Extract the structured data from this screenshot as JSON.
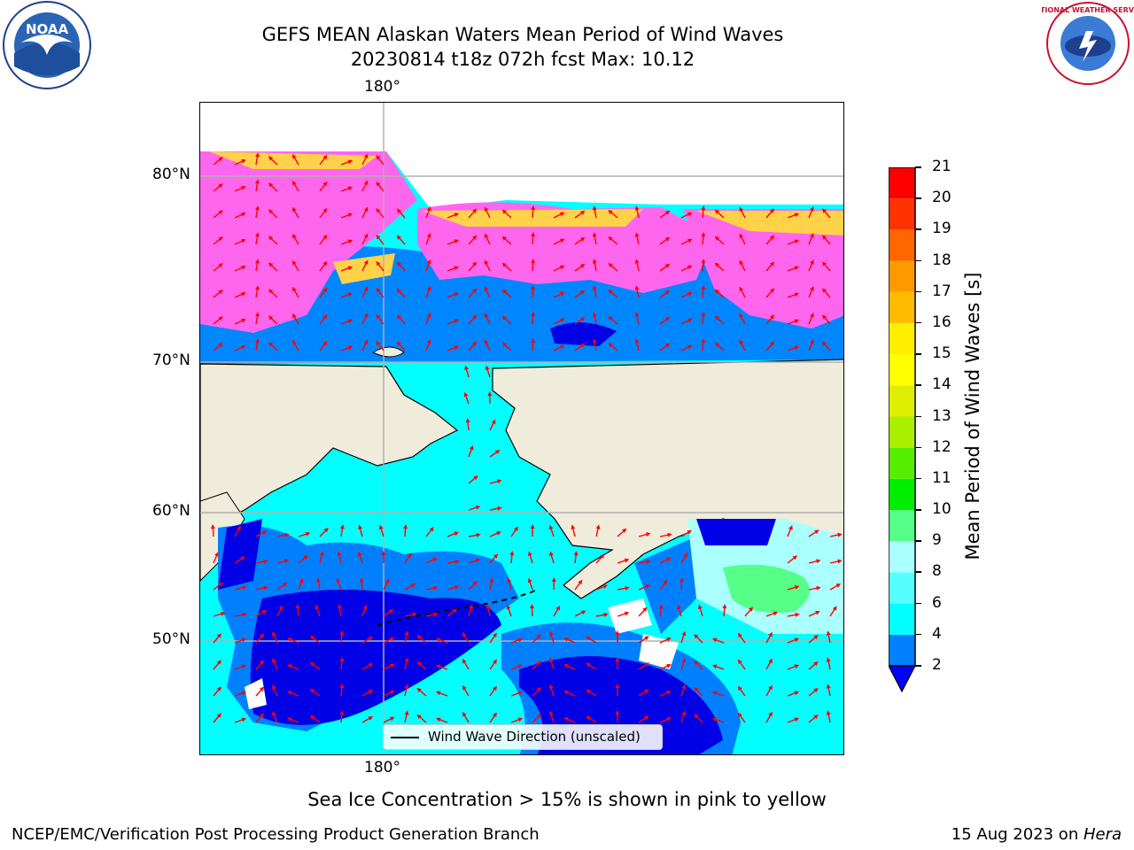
{
  "title": {
    "line1": "GEFS MEAN Alaskan Waters Mean Period of Wind Waves",
    "line2": "20230814 t18z 072h fcst   Max: 10.12"
  },
  "logos": {
    "left": {
      "icon": "noaa-logo-icon",
      "text": "NOAA"
    },
    "right": {
      "icon": "nws-logo-icon",
      "text": "NATIONAL WEATHER SERVICE"
    }
  },
  "map": {
    "lon_top": "180°",
    "lon_bottom": "180°",
    "lat_labels": [
      "80°N",
      "70°N",
      "60°N",
      "50°N"
    ],
    "legend_text": "Wind Wave Direction (unscaled)",
    "colors": {
      "land": "#efecdb",
      "ice_pink": "#ff66ee",
      "ice_yellow": "#ffd24a",
      "wave_2_4": "#0080ff",
      "wave_below_2": "#0000e6",
      "wave_4_6": "#00ffff",
      "wave_6_8": "#66ffff",
      "wave_8_9": "#aaffff",
      "wave_9_10": "#55ff88",
      "arrow": "#ff0000"
    }
  },
  "colorbar": {
    "label": "Mean Period of Wind Waves [s]",
    "ticks": [
      "2",
      "4",
      "6",
      "8",
      "9",
      "10",
      "11",
      "12",
      "13",
      "14",
      "15",
      "16",
      "17",
      "18",
      "19",
      "20",
      "21"
    ],
    "colors": [
      "#0080ff",
      "#00ffff",
      "#55ffff",
      "#aaffff",
      "#55ff88",
      "#00ee00",
      "#55ee00",
      "#aaee00",
      "#ddee00",
      "#ffff00",
      "#ffee00",
      "#ffbb00",
      "#ff9900",
      "#ff6600",
      "#ff3300",
      "#ff0000"
    ],
    "extend_min_color": "#0000ff"
  },
  "note": "Sea Ice Concentration > 15% is shown in pink to yellow",
  "footer": {
    "left": "NCEP/EMC/Verification Post Processing Product Generation Branch",
    "right_date": "15 Aug 2023 on ",
    "right_host": "Hera"
  }
}
